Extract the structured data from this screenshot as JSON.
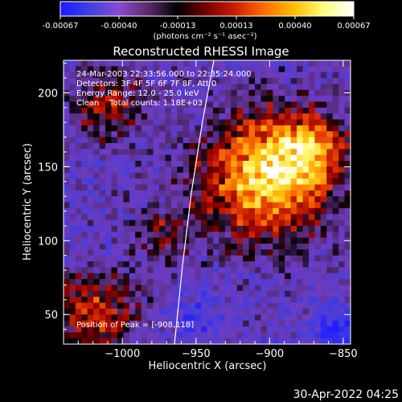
{
  "colorbar": {
    "tick_labels": [
      "-0.00067",
      "-0.00040",
      "-0.00013",
      "0.00013",
      "0.00040",
      "0.00067"
    ],
    "unit_label": "(photons cm⁻² s⁻¹ asec⁻²)",
    "colors": [
      "#1a1aff",
      "#4040e0",
      "#8a4ad0",
      "#5a2a6a",
      "#000000",
      "#7a0000",
      "#d02000",
      "#ff7000",
      "#ffc000",
      "#ffff80",
      "#ffffff"
    ]
  },
  "image": {
    "title": "Reconstructed RHESSI Image",
    "info_lines": [
      "24-Mar-2003 22:33:56.000 to 22:35:24.000",
      "Detectors: 3F 4F 5F 6F 7F 8F, Att 0",
      "Energy Range: 12.0 - 25.0 keV",
      "Clean    Total counts: 1.18E+03"
    ],
    "peak_label": "Position of Peak = [-908,118]",
    "limb_line_color": "#ffffff"
  },
  "axes": {
    "xlabel": "Heliocentric X (arcsec)",
    "ylabel": "Heliocentric Y (arcsec)",
    "xlim": [
      -1040,
      -845
    ],
    "ylim": [
      30,
      222
    ],
    "xticks": [
      -1000,
      -950,
      -900,
      -850
    ],
    "xtick_labels": [
      "−1000",
      "−950",
      "−900",
      "−850"
    ],
    "yticks": [
      50,
      100,
      150,
      200
    ],
    "ytick_labels": [
      "50",
      "100",
      "150",
      "200"
    ]
  },
  "footer": {
    "timestamp": "30-Apr-2022 04:25"
  }
}
